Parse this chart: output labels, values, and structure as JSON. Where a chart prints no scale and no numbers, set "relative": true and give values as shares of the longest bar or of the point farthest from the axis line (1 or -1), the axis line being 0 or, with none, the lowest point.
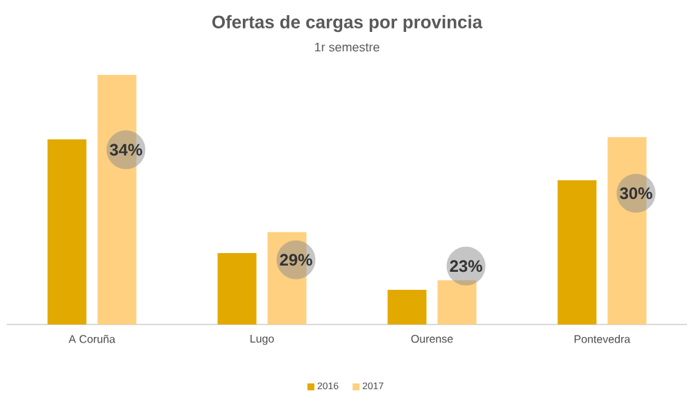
{
  "chart_data": {
    "type": "bar",
    "title": "Ofertas de cargas por provincia",
    "subtitle": "1r semestre",
    "categories": [
      "A Coruña",
      "Lugo",
      "Ourense",
      "Pontevedra"
    ],
    "relative": true,
    "series": [
      {
        "name": "2016",
        "color": "#e2a900",
        "values": [
          0.742,
          0.286,
          0.139,
          0.578
        ]
      },
      {
        "name": "2017",
        "color": "#ffd080",
        "values": [
          1,
          0.37,
          0.177,
          0.751
        ]
      }
    ],
    "annotations": [
      "34%",
      "29%",
      "23%",
      "30%"
    ],
    "legend": "bottom"
  }
}
